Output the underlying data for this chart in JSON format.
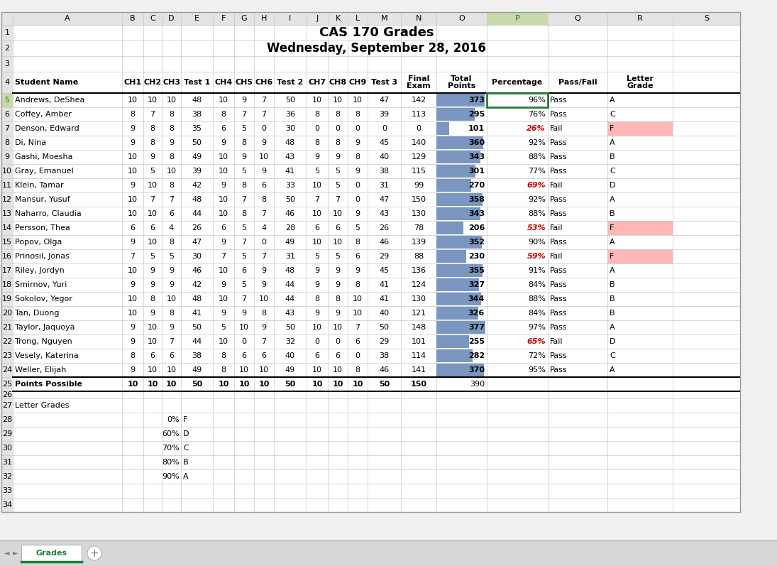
{
  "title1": "CAS 170 Grades",
  "title2": "Wednesday, September 28, 2016",
  "students": [
    {
      "name": "Andrews, DeShea",
      "ch1": 10,
      "ch2": 10,
      "ch3": 10,
      "t1": 48,
      "ch4": 10,
      "ch5": 9,
      "ch6": 7,
      "t2": 50,
      "ch7": 10,
      "ch8": 10,
      "ch9": 10,
      "t3": 47,
      "final": 142,
      "total": 373,
      "pct": "96%",
      "pf": "Pass",
      "grade": "A",
      "fail": false,
      "f_grade": false
    },
    {
      "name": "Coffey, Amber",
      "ch1": 8,
      "ch2": 7,
      "ch3": 8,
      "t1": 38,
      "ch4": 8,
      "ch5": 7,
      "ch6": 7,
      "t2": 36,
      "ch7": 8,
      "ch8": 8,
      "ch9": 8,
      "t3": 39,
      "final": 113,
      "total": 295,
      "pct": "76%",
      "pf": "Pass",
      "grade": "C",
      "fail": false,
      "f_grade": false
    },
    {
      "name": "Denson, Edward",
      "ch1": 9,
      "ch2": 8,
      "ch3": 8,
      "t1": 35,
      "ch4": 6,
      "ch5": 5,
      "ch6": 0,
      "t2": 30,
      "ch7": 0,
      "ch8": 0,
      "ch9": 0,
      "t3": 0,
      "final": 0,
      "total": 101,
      "pct": "26%",
      "pf": "Fail",
      "grade": "F",
      "fail": true,
      "f_grade": true
    },
    {
      "name": "Di, Nina",
      "ch1": 9,
      "ch2": 8,
      "ch3": 9,
      "t1": 50,
      "ch4": 9,
      "ch5": 8,
      "ch6": 9,
      "t2": 48,
      "ch7": 8,
      "ch8": 8,
      "ch9": 9,
      "t3": 45,
      "final": 140,
      "total": 360,
      "pct": "92%",
      "pf": "Pass",
      "grade": "A",
      "fail": false,
      "f_grade": false
    },
    {
      "name": "Gashi, Moesha",
      "ch1": 10,
      "ch2": 9,
      "ch3": 8,
      "t1": 49,
      "ch4": 10,
      "ch5": 9,
      "ch6": 10,
      "t2": 43,
      "ch7": 9,
      "ch8": 9,
      "ch9": 8,
      "t3": 40,
      "final": 129,
      "total": 343,
      "pct": "88%",
      "pf": "Pass",
      "grade": "B",
      "fail": false,
      "f_grade": false
    },
    {
      "name": "Gray, Emanuel",
      "ch1": 10,
      "ch2": 5,
      "ch3": 10,
      "t1": 39,
      "ch4": 10,
      "ch5": 5,
      "ch6": 9,
      "t2": 41,
      "ch7": 5,
      "ch8": 5,
      "ch9": 9,
      "t3": 38,
      "final": 115,
      "total": 301,
      "pct": "77%",
      "pf": "Pass",
      "grade": "C",
      "fail": false,
      "f_grade": false
    },
    {
      "name": "Klein, Tamar",
      "ch1": 9,
      "ch2": 10,
      "ch3": 8,
      "t1": 42,
      "ch4": 9,
      "ch5": 8,
      "ch6": 6,
      "t2": 33,
      "ch7": 10,
      "ch8": 5,
      "ch9": 0,
      "t3": 31,
      "final": 99,
      "total": 270,
      "pct": "69%",
      "pf": "Fail",
      "grade": "D",
      "fail": true,
      "f_grade": false
    },
    {
      "name": "Mansur, Yusuf",
      "ch1": 10,
      "ch2": 7,
      "ch3": 7,
      "t1": 48,
      "ch4": 10,
      "ch5": 7,
      "ch6": 8,
      "t2": 50,
      "ch7": 7,
      "ch8": 7,
      "ch9": 0,
      "t3": 47,
      "final": 150,
      "total": 358,
      "pct": "92%",
      "pf": "Pass",
      "grade": "A",
      "fail": false,
      "f_grade": false
    },
    {
      "name": "Naharro, Claudia",
      "ch1": 10,
      "ch2": 10,
      "ch3": 6,
      "t1": 44,
      "ch4": 10,
      "ch5": 8,
      "ch6": 7,
      "t2": 46,
      "ch7": 10,
      "ch8": 10,
      "ch9": 9,
      "t3": 43,
      "final": 130,
      "total": 343,
      "pct": "88%",
      "pf": "Pass",
      "grade": "B",
      "fail": false,
      "f_grade": false
    },
    {
      "name": "Persson, Thea",
      "ch1": 6,
      "ch2": 6,
      "ch3": 4,
      "t1": 26,
      "ch4": 6,
      "ch5": 5,
      "ch6": 4,
      "t2": 28,
      "ch7": 6,
      "ch8": 6,
      "ch9": 5,
      "t3": 26,
      "final": 78,
      "total": 206,
      "pct": "53%",
      "pf": "Fail",
      "grade": "F",
      "fail": true,
      "f_grade": true
    },
    {
      "name": "Popov, Olga",
      "ch1": 9,
      "ch2": 10,
      "ch3": 8,
      "t1": 47,
      "ch4": 9,
      "ch5": 7,
      "ch6": 0,
      "t2": 49,
      "ch7": 10,
      "ch8": 10,
      "ch9": 8,
      "t3": 46,
      "final": 139,
      "total": 352,
      "pct": "90%",
      "pf": "Pass",
      "grade": "A",
      "fail": false,
      "f_grade": false
    },
    {
      "name": "Prinosil, Jonas",
      "ch1": 7,
      "ch2": 5,
      "ch3": 5,
      "t1": 30,
      "ch4": 7,
      "ch5": 5,
      "ch6": 7,
      "t2": 31,
      "ch7": 5,
      "ch8": 5,
      "ch9": 6,
      "t3": 29,
      "final": 88,
      "total": 230,
      "pct": "59%",
      "pf": "Fail",
      "grade": "F",
      "fail": true,
      "f_grade": true
    },
    {
      "name": "Riley, Jordyn",
      "ch1": 10,
      "ch2": 9,
      "ch3": 9,
      "t1": 46,
      "ch4": 10,
      "ch5": 6,
      "ch6": 9,
      "t2": 48,
      "ch7": 9,
      "ch8": 9,
      "ch9": 9,
      "t3": 45,
      "final": 136,
      "total": 355,
      "pct": "91%",
      "pf": "Pass",
      "grade": "A",
      "fail": false,
      "f_grade": false
    },
    {
      "name": "Smirnov, Yuri",
      "ch1": 9,
      "ch2": 9,
      "ch3": 9,
      "t1": 42,
      "ch4": 9,
      "ch5": 5,
      "ch6": 9,
      "t2": 44,
      "ch7": 9,
      "ch8": 9,
      "ch9": 8,
      "t3": 41,
      "final": 124,
      "total": 327,
      "pct": "84%",
      "pf": "Pass",
      "grade": "B",
      "fail": false,
      "f_grade": false
    },
    {
      "name": "Sokolov, Yegor",
      "ch1": 10,
      "ch2": 8,
      "ch3": 10,
      "t1": 48,
      "ch4": 10,
      "ch5": 7,
      "ch6": 10,
      "t2": 44,
      "ch7": 8,
      "ch8": 8,
      "ch9": 10,
      "t3": 41,
      "final": 130,
      "total": 344,
      "pct": "88%",
      "pf": "Pass",
      "grade": "B",
      "fail": false,
      "f_grade": false
    },
    {
      "name": "Tan, Duong",
      "ch1": 10,
      "ch2": 9,
      "ch3": 8,
      "t1": 41,
      "ch4": 9,
      "ch5": 9,
      "ch6": 8,
      "t2": 43,
      "ch7": 9,
      "ch8": 9,
      "ch9": 10,
      "t3": 40,
      "final": 121,
      "total": 326,
      "pct": "84%",
      "pf": "Pass",
      "grade": "B",
      "fail": false,
      "f_grade": false
    },
    {
      "name": "Taylor, Jaquoya",
      "ch1": 9,
      "ch2": 10,
      "ch3": 9,
      "t1": 50,
      "ch4": 5,
      "ch5": 10,
      "ch6": 9,
      "t2": 50,
      "ch7": 10,
      "ch8": 10,
      "ch9": 7,
      "t3": 50,
      "final": 148,
      "total": 377,
      "pct": "97%",
      "pf": "Pass",
      "grade": "A",
      "fail": false,
      "f_grade": false
    },
    {
      "name": "Trong, Nguyen",
      "ch1": 9,
      "ch2": 10,
      "ch3": 7,
      "t1": 44,
      "ch4": 10,
      "ch5": 0,
      "ch6": 7,
      "t2": 32,
      "ch7": 0,
      "ch8": 0,
      "ch9": 6,
      "t3": 29,
      "final": 101,
      "total": 255,
      "pct": "65%",
      "pf": "Fail",
      "grade": "D",
      "fail": true,
      "f_grade": false
    },
    {
      "name": "Vesely, Katerina",
      "ch1": 8,
      "ch2": 6,
      "ch3": 6,
      "t1": 38,
      "ch4": 8,
      "ch5": 6,
      "ch6": 6,
      "t2": 40,
      "ch7": 6,
      "ch8": 6,
      "ch9": 0,
      "t3": 38,
      "final": 114,
      "total": 282,
      "pct": "72%",
      "pf": "Pass",
      "grade": "C",
      "fail": false,
      "f_grade": false
    },
    {
      "name": "Weller, Elijah",
      "ch1": 9,
      "ch2": 10,
      "ch3": 10,
      "t1": 49,
      "ch4": 8,
      "ch5": 10,
      "ch6": 10,
      "t2": 49,
      "ch7": 10,
      "ch8": 10,
      "ch9": 8,
      "t3": 46,
      "final": 141,
      "total": 370,
      "pct": "95%",
      "pf": "Pass",
      "grade": "A",
      "fail": false,
      "f_grade": false
    }
  ],
  "points_possible": {
    "ch1": 10,
    "ch2": 10,
    "ch3": 10,
    "t1": 50,
    "ch4": 10,
    "ch5": 10,
    "ch6": 10,
    "t2": 50,
    "ch7": 10,
    "ch8": 10,
    "ch9": 10,
    "t3": 50,
    "final": 150,
    "total": 390
  },
  "letter_grades_rows": [
    {
      "pct": "0%",
      "grade": "F",
      "row": 28
    },
    {
      "pct": "60%",
      "grade": "D",
      "row": 29
    },
    {
      "pct": "70%",
      "grade": "C",
      "row": 30
    },
    {
      "pct": "80%",
      "grade": "B",
      "row": 31
    },
    {
      "pct": "90%",
      "grade": "A",
      "row": 32
    }
  ],
  "bar_color": "#6b8cba",
  "fail_pct_color": "#cc0000",
  "fail_grade_bg": "#ffb6b6",
  "gridline_color": "#c8c8c8",
  "header_col_color": "#e4e4e4",
  "tab_color": "#1e7e34",
  "selected_header_bg": "#c8daa8",
  "selected_header_fg": "#2d6a2d",
  "selected_border_color": "#1e7e34"
}
